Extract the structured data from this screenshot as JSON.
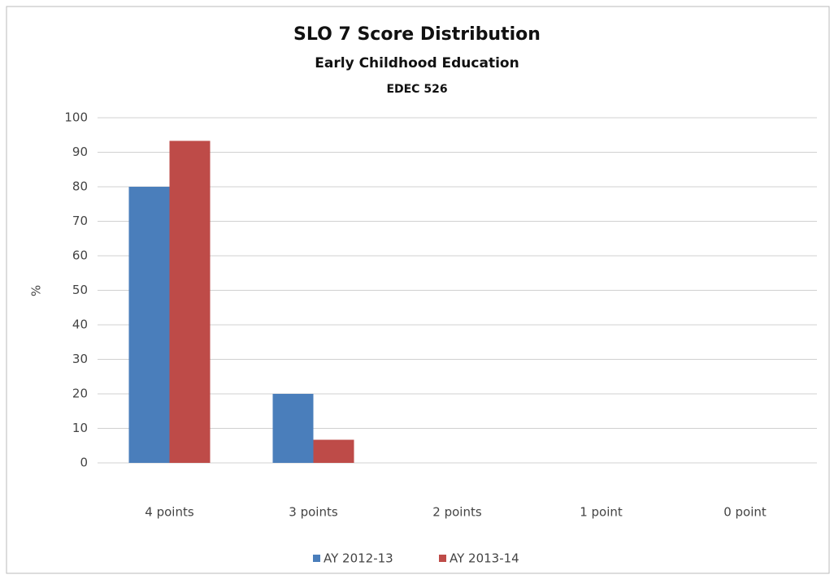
{
  "chart_data": {
    "type": "bar",
    "title": "SLO 7 Score Distribution",
    "subtitles": [
      "Early Childhood Education",
      "EDEC 526"
    ],
    "y_label": "%",
    "categories": [
      "4 points",
      "3 points",
      "2 points",
      "1 point",
      "0 point"
    ],
    "series": [
      {
        "name": "AY 2012-13",
        "color": "#4a7ebb",
        "values": [
          80,
          20,
          0,
          0,
          0
        ]
      },
      {
        "name": "AY 2013-14",
        "color": "#be4b48",
        "values": [
          93.3,
          6.7,
          0,
          0,
          0
        ]
      }
    ],
    "ylim": [
      0,
      100
    ],
    "yticks": [
      0,
      10,
      20,
      30,
      40,
      50,
      60,
      70,
      80,
      90,
      100
    ],
    "grid": true,
    "legend": "bottom"
  }
}
